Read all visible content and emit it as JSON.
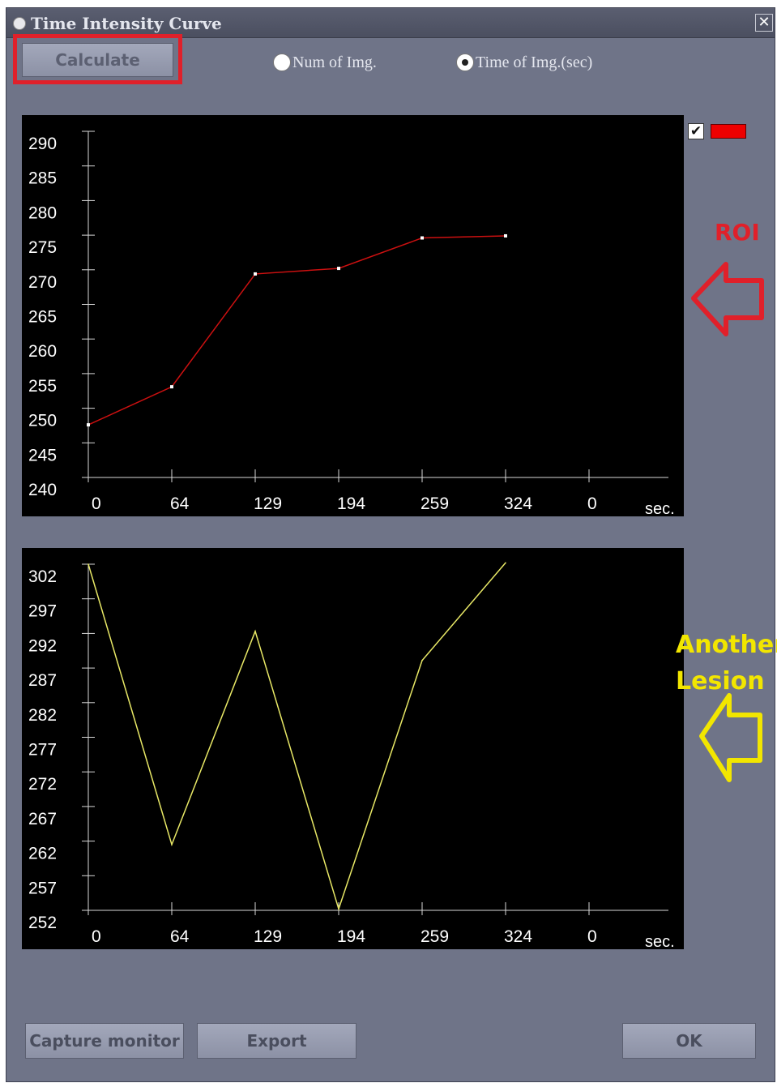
{
  "window": {
    "title": "Time Intensity Curve",
    "close_symbol": "✕"
  },
  "toolbar": {
    "calculate_label": "Calculate",
    "radio_num_label": "Num of Img.",
    "radio_time_label": "Time of Img.(sec)",
    "selected_radio": "time"
  },
  "legend": {
    "checked": true,
    "check_symbol": "✔",
    "swatch_color": "#ee0000"
  },
  "annotations": {
    "roi_label": "ROI",
    "roi_color": "#e0202a",
    "lesion_line1": "Another",
    "lesion_line2": "Lesion",
    "lesion_color": "#f2e600"
  },
  "buttons": {
    "capture_label": "Capture monitor",
    "export_label": "Export",
    "ok_label": "OK"
  },
  "chart_data": [
    {
      "type": "line",
      "color": "#cc1010",
      "x_ticks": [
        "0",
        "64",
        "129",
        "194",
        "259",
        "324",
        "0"
      ],
      "x_unit": "sec.",
      "y_ticks": [
        "290",
        "285",
        "280",
        "275",
        "270",
        "265",
        "260",
        "255",
        "250",
        "245",
        "240"
      ],
      "ylim": [
        240,
        290
      ],
      "x": [
        0,
        64,
        129,
        194,
        259,
        324
      ],
      "values": [
        247.6,
        253.1,
        269.4,
        270.2,
        274.6,
        274.9
      ]
    },
    {
      "type": "line",
      "color": "#e8e866",
      "x_ticks": [
        "0",
        "64",
        "129",
        "194",
        "259",
        "324",
        "0"
      ],
      "x_unit": "sec.",
      "y_ticks": [
        "302",
        "297",
        "292",
        "287",
        "282",
        "277",
        "272",
        "267",
        "262",
        "257",
        "252"
      ],
      "ylim": [
        252,
        302
      ],
      "x": [
        0,
        64,
        129,
        194,
        259,
        324
      ],
      "values": [
        302,
        261.5,
        292.3,
        252.2,
        288.1,
        302.2
      ]
    }
  ]
}
